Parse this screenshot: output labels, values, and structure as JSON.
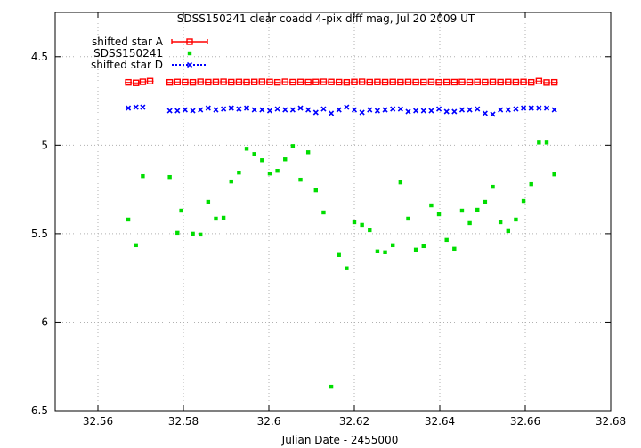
{
  "chart_data": {
    "type": "scatter",
    "title": "SDSS150241 clear coadd 4-pix diff mag, Jul 20 2009 UT",
    "xlabel": "Julian Date - 2455000",
    "ylabel": "",
    "xlim": [
      32.55,
      32.68
    ],
    "ylim": [
      6.5,
      4.25
    ],
    "y_inverted": true,
    "grid": true,
    "legend_position": "top-left",
    "x_ticks": [
      "32.56",
      "32.58",
      "32.6",
      "32.62",
      "32.64",
      "32.66",
      "32.68"
    ],
    "x_tick_values": [
      32.56,
      32.58,
      32.6,
      32.62,
      32.64,
      32.66,
      32.68
    ],
    "y_ticks": [
      "4.5",
      "5",
      "5.5",
      "6",
      "6.5"
    ],
    "y_tick_values": [
      4.5,
      5.0,
      5.5,
      6.0,
      6.5
    ],
    "series": [
      {
        "name": "shifted star A",
        "color": "#ff0000",
        "marker": "open-square-errorbar",
        "x": [
          32.5671,
          32.5689,
          32.5705,
          32.5722,
          32.5768,
          32.5786,
          32.5804,
          32.5822,
          32.584,
          32.5858,
          32.5876,
          32.5894,
          32.5912,
          32.593,
          32.5948,
          32.5966,
          32.5984,
          32.6002,
          32.602,
          32.6038,
          32.6056,
          32.6074,
          32.6092,
          32.611,
          32.6128,
          32.6146,
          32.6164,
          32.6182,
          32.62,
          32.6218,
          32.6236,
          32.6254,
          32.6272,
          32.629,
          32.6308,
          32.6326,
          32.6344,
          32.6362,
          32.638,
          32.6398,
          32.6416,
          32.6434,
          32.6452,
          32.647,
          32.6488,
          32.6506,
          32.6524,
          32.6542,
          32.656,
          32.6578,
          32.6596,
          32.6614,
          32.6632,
          32.665,
          32.6668
        ],
        "y": [
          4.645,
          4.648,
          4.642,
          4.638,
          4.645,
          4.643,
          4.644,
          4.645,
          4.642,
          4.644,
          4.643,
          4.642,
          4.644,
          4.643,
          4.644,
          4.643,
          4.642,
          4.643,
          4.645,
          4.642,
          4.644,
          4.643,
          4.644,
          4.643,
          4.642,
          4.643,
          4.644,
          4.645,
          4.643,
          4.642,
          4.644,
          4.643,
          4.644,
          4.643,
          4.644,
          4.643,
          4.644,
          4.644,
          4.643,
          4.645,
          4.644,
          4.644,
          4.643,
          4.644,
          4.643,
          4.644,
          4.643,
          4.644,
          4.643,
          4.644,
          4.643,
          4.645,
          4.638,
          4.646,
          4.645
        ]
      },
      {
        "name": "SDSS150241",
        "color": "#00dd00",
        "marker": "filled-square",
        "x": [
          32.5671,
          32.5689,
          32.5705,
          32.5768,
          32.5786,
          32.5795,
          32.5822,
          32.584,
          32.5858,
          32.5876,
          32.5894,
          32.5912,
          32.593,
          32.5948,
          32.5966,
          32.5984,
          32.6002,
          32.602,
          32.6038,
          32.6056,
          32.6074,
          32.6092,
          32.611,
          32.6128,
          32.6146,
          32.6164,
          32.6182,
          32.62,
          32.6218,
          32.6236,
          32.6254,
          32.6272,
          32.629,
          32.6308,
          32.6326,
          32.6344,
          32.6362,
          32.638,
          32.6398,
          32.6416,
          32.6434,
          32.6452,
          32.647,
          32.6488,
          32.6506,
          32.6524,
          32.6542,
          32.656,
          32.6578,
          32.6596,
          32.6614,
          32.6632,
          32.665,
          32.6668
        ],
        "y": [
          5.42,
          5.565,
          5.175,
          5.18,
          5.495,
          5.37,
          5.5,
          5.505,
          5.32,
          5.415,
          5.41,
          5.205,
          5.155,
          5.02,
          5.05,
          5.085,
          5.16,
          5.145,
          5.08,
          5.005,
          5.195,
          5.04,
          5.255,
          5.38,
          6.365,
          5.62,
          5.695,
          5.435,
          5.45,
          5.48,
          5.6,
          5.605,
          5.565,
          5.21,
          5.415,
          5.59,
          5.57,
          5.34,
          5.39,
          5.535,
          5.585,
          5.37,
          5.44,
          5.365,
          5.32,
          5.235,
          5.435,
          5.485,
          5.42,
          5.315,
          5.22,
          4.985,
          4.985,
          5.165
        ]
      },
      {
        "name": "shifted star D",
        "color": "#0000ff",
        "marker": "cross-dots",
        "x": [
          32.5671,
          32.5689,
          32.5705,
          32.5768,
          32.5786,
          32.5804,
          32.5822,
          32.584,
          32.5858,
          32.5876,
          32.5894,
          32.5912,
          32.593,
          32.5948,
          32.5966,
          32.5984,
          32.6002,
          32.602,
          32.6038,
          32.6056,
          32.6074,
          32.6092,
          32.611,
          32.6128,
          32.6146,
          32.6164,
          32.6182,
          32.62,
          32.6218,
          32.6236,
          32.6254,
          32.6272,
          32.629,
          32.6308,
          32.6326,
          32.6344,
          32.6362,
          32.638,
          32.6398,
          32.6416,
          32.6434,
          32.6452,
          32.647,
          32.6488,
          32.6506,
          32.6524,
          32.6542,
          32.656,
          32.6578,
          32.6596,
          32.6614,
          32.6632,
          32.665,
          32.6668
        ],
        "y": [
          4.79,
          4.785,
          4.785,
          4.805,
          4.805,
          4.8,
          4.805,
          4.8,
          4.79,
          4.8,
          4.795,
          4.79,
          4.795,
          4.79,
          4.8,
          4.8,
          4.805,
          4.795,
          4.8,
          4.8,
          4.79,
          4.8,
          4.815,
          4.795,
          4.82,
          4.8,
          4.785,
          4.8,
          4.815,
          4.8,
          4.805,
          4.8,
          4.795,
          4.795,
          4.81,
          4.805,
          4.805,
          4.805,
          4.795,
          4.81,
          4.81,
          4.8,
          4.8,
          4.795,
          4.82,
          4.825,
          4.8,
          4.8,
          4.795,
          4.79,
          4.79,
          4.79,
          4.79,
          4.8
        ]
      }
    ]
  }
}
